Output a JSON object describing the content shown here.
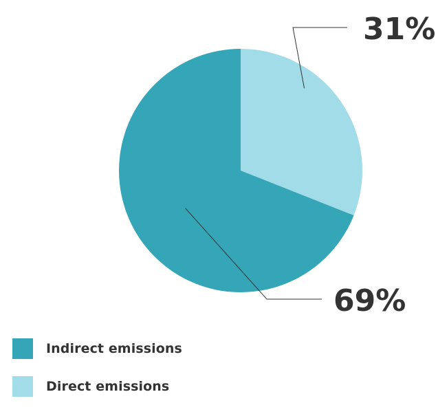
{
  "chart_data": {
    "type": "pie",
    "title": "",
    "slices": [
      {
        "label": "Direct emissions",
        "value": 31,
        "display": "31%",
        "color": "#a3dce9"
      },
      {
        "label": "Indirect emissions",
        "value": 69,
        "display": "69%",
        "color": "#35a5b8"
      }
    ],
    "start_angle": "12 o'clock",
    "direction": "clockwise",
    "legend": {
      "placement": "bottom-left",
      "items": [
        {
          "label": "Indirect emissions",
          "color": "#35a5b8"
        },
        {
          "label": "Direct emissions",
          "color": "#a3dce9"
        }
      ]
    }
  },
  "colors": {
    "leader_line": "#333333",
    "label_text": "#333333",
    "background": "#ffffff"
  }
}
